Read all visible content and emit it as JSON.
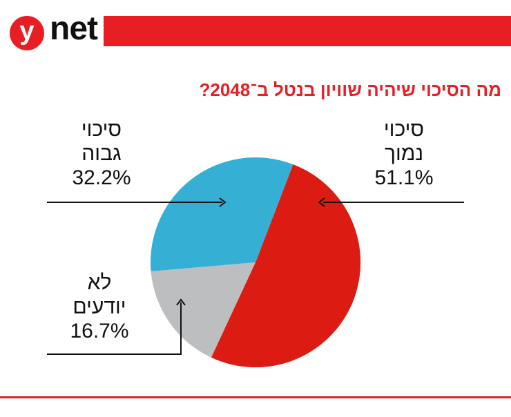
{
  "brand": {
    "logo_letter": "y",
    "logo_text": "net",
    "accent_color": "#e81e25"
  },
  "chart_data": {
    "type": "pie",
    "title": "מה הסיכוי שיהיה שוויון בנטל ב־2048?",
    "slices": [
      {
        "label_line1": "סיכוי",
        "label_line2": "נמוך",
        "value": 51.1,
        "value_text": "51.1%",
        "color": "#dc1c12"
      },
      {
        "label_line1": "לא",
        "label_line2": "יודעים",
        "value": 16.7,
        "value_text": "16.7%",
        "color": "#bdbec0"
      },
      {
        "label_line1": "סיכוי",
        "label_line2": "גבוה",
        "value": 32.2,
        "value_text": "32.2%",
        "color": "#35b0d4"
      }
    ]
  }
}
